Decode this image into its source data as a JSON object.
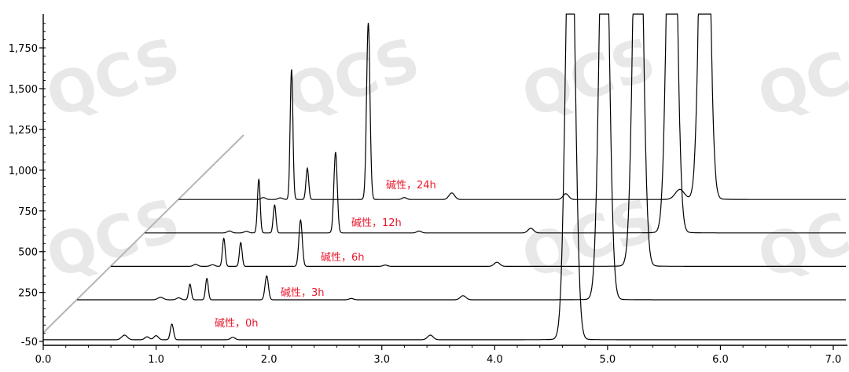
{
  "chart_data": {
    "type": "line",
    "title": "",
    "xlabel": "",
    "ylabel": "",
    "xlim": [
      0.0,
      7.2
    ],
    "ylim": [
      -50,
      1950
    ],
    "x_ticks": [
      "0.0",
      "1.0",
      "2.0",
      "3.0",
      "4.0",
      "5.0",
      "6.0",
      "7.0"
    ],
    "y_ticks": [
      "-50",
      "250",
      "500",
      "750",
      "1,000",
      "1,250",
      "1,500",
      "1,750"
    ],
    "grid": false,
    "watermark": "QCS",
    "series": [
      {
        "name": "碱性，0h",
        "x_offset": 0.0,
        "baseline": -40,
        "start": 0.0,
        "peaks": [
          {
            "x": 0.72,
            "h": 28,
            "w": 0.025
          },
          {
            "x": 0.92,
            "h": 18,
            "w": 0.02
          },
          {
            "x": 1.0,
            "h": 25,
            "w": 0.02
          },
          {
            "x": 1.14,
            "h": 95,
            "w": 0.014
          },
          {
            "x": 1.68,
            "h": 15,
            "w": 0.02
          },
          {
            "x": 3.43,
            "h": 28,
            "w": 0.025
          },
          {
            "x": 4.67,
            "h": 3000,
            "w": 0.04
          }
        ]
      },
      {
        "name": "碱性，3h",
        "x_offset": 0.3,
        "baseline": 205,
        "start": 0.3,
        "peaks": [
          {
            "x": 1.04,
            "h": 15,
            "w": 0.025
          },
          {
            "x": 1.2,
            "h": 12,
            "w": 0.02
          },
          {
            "x": 1.3,
            "h": 95,
            "w": 0.012
          },
          {
            "x": 1.45,
            "h": 130,
            "w": 0.012
          },
          {
            "x": 1.98,
            "h": 145,
            "w": 0.015
          },
          {
            "x": 2.73,
            "h": 8,
            "w": 0.02
          },
          {
            "x": 3.72,
            "h": 25,
            "w": 0.025
          },
          {
            "x": 4.97,
            "h": 3000,
            "w": 0.04
          }
        ]
      },
      {
        "name": "碱性，6h",
        "x_offset": 0.6,
        "baseline": 410,
        "start": 0.6,
        "peaks": [
          {
            "x": 1.35,
            "h": 12,
            "w": 0.02
          },
          {
            "x": 1.5,
            "h": 10,
            "w": 0.02
          },
          {
            "x": 1.6,
            "h": 170,
            "w": 0.012
          },
          {
            "x": 1.75,
            "h": 145,
            "w": 0.012
          },
          {
            "x": 2.28,
            "h": 280,
            "w": 0.015
          },
          {
            "x": 3.03,
            "h": 8,
            "w": 0.02
          },
          {
            "x": 4.02,
            "h": 25,
            "w": 0.025
          },
          {
            "x": 5.27,
            "h": 3000,
            "w": 0.04
          }
        ]
      },
      {
        "name": "碱性，12h",
        "x_offset": 0.9,
        "baseline": 615,
        "start": 0.9,
        "peaks": [
          {
            "x": 1.65,
            "h": 12,
            "w": 0.02
          },
          {
            "x": 1.8,
            "h": 10,
            "w": 0.02
          },
          {
            "x": 1.91,
            "h": 325,
            "w": 0.012
          },
          {
            "x": 2.05,
            "h": 170,
            "w": 0.012
          },
          {
            "x": 2.59,
            "h": 490,
            "w": 0.015
          },
          {
            "x": 3.33,
            "h": 12,
            "w": 0.02
          },
          {
            "x": 4.32,
            "h": 28,
            "w": 0.025
          },
          {
            "x": 5.57,
            "h": 3000,
            "w": 0.04
          }
        ]
      },
      {
        "name": "碱性，24h",
        "x_offset": 1.2,
        "baseline": 820,
        "start": 1.2,
        "peaks": [
          {
            "x": 1.95,
            "h": 12,
            "w": 0.02
          },
          {
            "x": 2.1,
            "h": 10,
            "w": 0.02
          },
          {
            "x": 2.2,
            "h": 790,
            "w": 0.012
          },
          {
            "x": 2.34,
            "h": 190,
            "w": 0.012
          },
          {
            "x": 2.88,
            "h": 1070,
            "w": 0.015
          },
          {
            "x": 3.2,
            "h": 12,
            "w": 0.02
          },
          {
            "x": 3.62,
            "h": 40,
            "w": 0.025
          },
          {
            "x": 4.63,
            "h": 35,
            "w": 0.025
          },
          {
            "x": 5.64,
            "h": 60,
            "w": 0.04
          },
          {
            "x": 5.86,
            "h": 3000,
            "w": 0.04
          }
        ]
      }
    ]
  }
}
